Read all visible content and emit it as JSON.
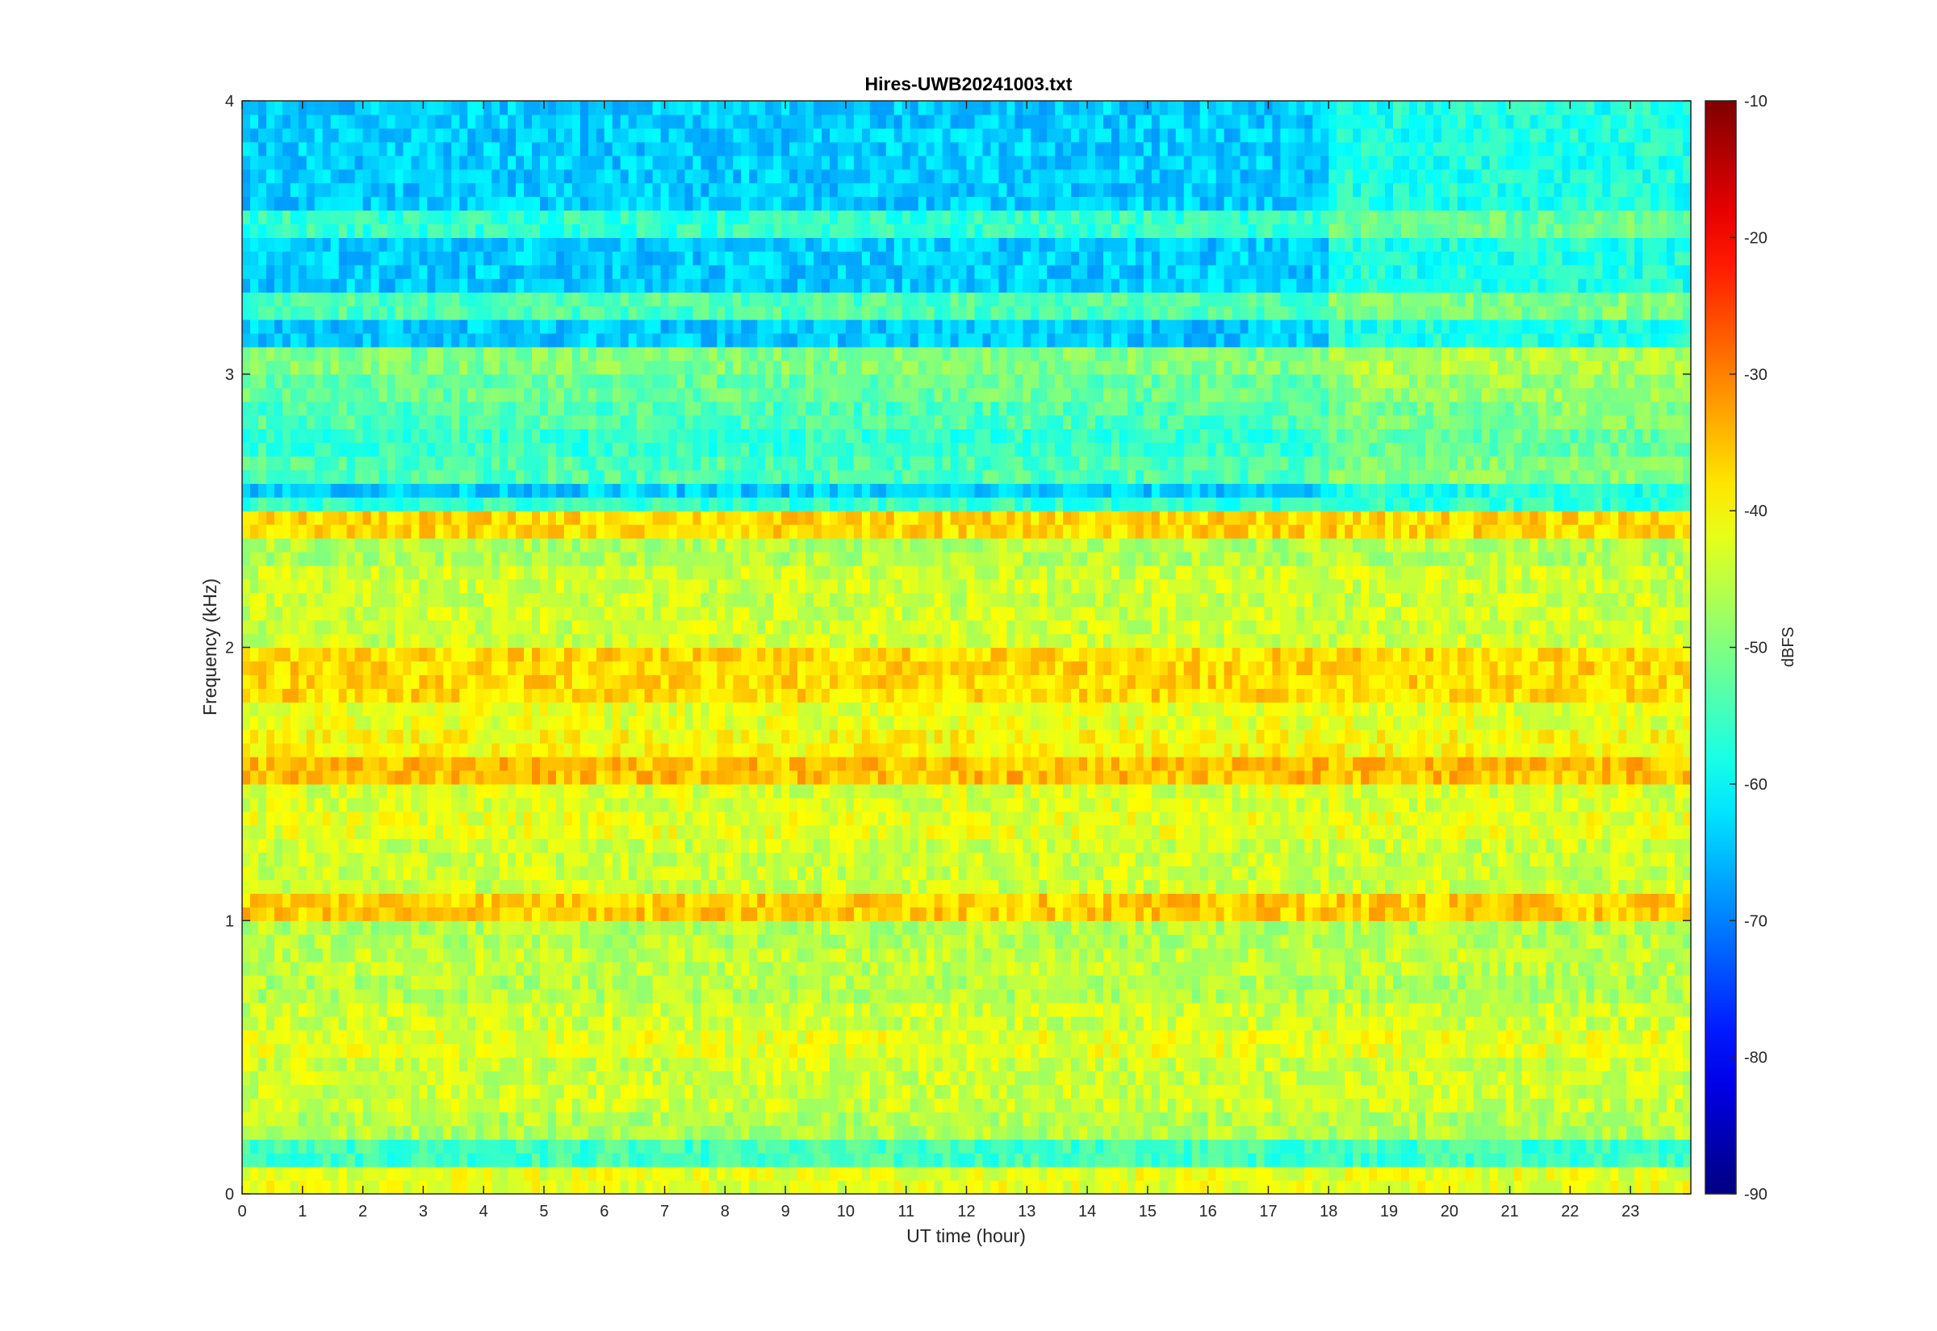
{
  "chart_data": {
    "type": "heatmap",
    "title": "Hires-UWB20241003.txt",
    "xlabel": "UT time (hour)",
    "ylabel": "Frequency (kHz)",
    "xlim": [
      0,
      24
    ],
    "ylim": [
      0,
      4
    ],
    "xticks": [
      0,
      1,
      2,
      3,
      4,
      5,
      6,
      7,
      8,
      9,
      10,
      11,
      12,
      13,
      14,
      15,
      16,
      17,
      18,
      19,
      20,
      21,
      22,
      23
    ],
    "yticks": [
      0,
      1,
      2,
      3,
      4
    ],
    "colormap": "jet",
    "colorbar": {
      "label": "dBFS",
      "clim": [
        -90,
        -10
      ],
      "ticks": [
        -90,
        -80,
        -70,
        -60,
        -50,
        -40,
        -30,
        -20,
        -10
      ]
    },
    "grid": false,
    "notes_visible": "Horizontal tone bands; strongest near 1.05, 1.55, 1.85, 1.95 and 2.45 kHz; lower upper-band levels before ~18 UT, brighter after 18 UT",
    "bands_khz_dbfs": [
      {
        "freq": 0.05,
        "level": -42
      },
      {
        "freq": 0.25,
        "level": -46
      },
      {
        "freq": 0.35,
        "level": -44
      },
      {
        "freq": 0.45,
        "level": -44
      },
      {
        "freq": 0.55,
        "level": -42
      },
      {
        "freq": 0.65,
        "level": -44
      },
      {
        "freq": 0.75,
        "level": -46
      },
      {
        "freq": 0.85,
        "level": -45
      },
      {
        "freq": 0.95,
        "level": -46
      },
      {
        "freq": 1.05,
        "level": -36
      },
      {
        "freq": 1.15,
        "level": -44
      },
      {
        "freq": 1.25,
        "level": -44
      },
      {
        "freq": 1.35,
        "level": -42
      },
      {
        "freq": 1.45,
        "level": -43
      },
      {
        "freq": 1.55,
        "level": -35
      },
      {
        "freq": 1.65,
        "level": -40
      },
      {
        "freq": 1.75,
        "level": -42
      },
      {
        "freq": 1.85,
        "level": -37
      },
      {
        "freq": 1.95,
        "level": -37
      },
      {
        "freq": 2.05,
        "level": -44
      },
      {
        "freq": 2.15,
        "level": -44
      },
      {
        "freq": 2.25,
        "level": -44
      },
      {
        "freq": 2.35,
        "level": -46
      },
      {
        "freq": 2.45,
        "level": -37
      },
      {
        "freq": 2.65,
        "level": -50
      },
      {
        "freq": 2.75,
        "level": -52
      },
      {
        "freq": 2.85,
        "level": -50
      },
      {
        "freq": 2.95,
        "level": -48
      },
      {
        "freq": 3.05,
        "level": -46
      },
      {
        "freq": 3.25,
        "level": -50
      },
      {
        "freq": 3.55,
        "level": -52
      }
    ]
  }
}
